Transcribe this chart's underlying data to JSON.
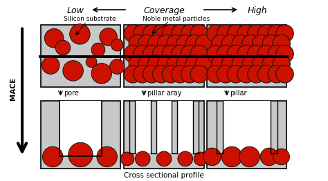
{
  "bg_color": "#ffffff",
  "box_fill": "#c8c8c8",
  "circle_fill": "#cc1100",
  "circle_edge": "#111111",
  "title_coverage": "Coverage",
  "label_low": "Low",
  "label_high": "High",
  "label_silicon": "Silicon substrate",
  "label_noble": "Noble metal particles",
  "label_mace": "MACE",
  "label_cross": "Cross sectional profile",
  "label_pore": "pore",
  "label_pillar_array": "pillar aray",
  "label_pillar": "pillar",
  "fig_w": 4.74,
  "fig_h": 2.62,
  "dpi": 100
}
